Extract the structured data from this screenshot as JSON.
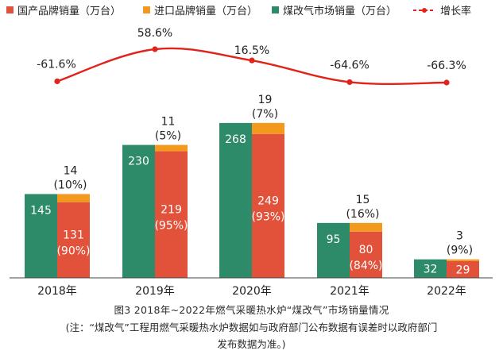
{
  "chart_data": {
    "type": "bar",
    "stacked": true,
    "categories": [
      "2018年",
      "2019年",
      "2020年",
      "2021年",
      "2022年"
    ],
    "series": [
      {
        "name": "国产品牌销量（万台）",
        "color": "#e2513a",
        "values": [
          131,
          219,
          249,
          80,
          29
        ],
        "labels": [
          "131\n(90%)",
          "219\n(95%)",
          "249\n(93%)",
          "80\n(84%)",
          "29"
        ]
      },
      {
        "name": "进口品牌销量（万台）",
        "color": "#f39a1e",
        "values": [
          14,
          11,
          19,
          15,
          3
        ],
        "labels": [
          "14\n(10%)",
          "11\n(5%)",
          "19\n(7%)",
          "15\n(16%)",
          "3\n(9%)"
        ]
      },
      {
        "name": "煤改气市场销量（万台）",
        "color": "#2e8b6a",
        "values": [
          145,
          230,
          268,
          95,
          32
        ],
        "labels": [
          "145",
          "230",
          "268",
          "95",
          "32"
        ]
      },
      {
        "name": "增长率",
        "color": "#e1231c",
        "type": "line",
        "values": [
          -61.6,
          58.6,
          16.5,
          -64.6,
          -66.3
        ],
        "labels": [
          "-61.6%",
          "58.6%",
          "16.5%",
          "-64.6%",
          "-66.3%"
        ]
      }
    ],
    "legend": "top",
    "grid": false
  },
  "caption": "图3 2018年~2022年燃气采暖热水炉“煤改气”市场销量情况",
  "note_line1": "(注：“煤改气”工程用燃气采暖热水炉数据如与政府部门公布数据有误差时以政府部门",
  "note_line2": "发布数据为准。)"
}
